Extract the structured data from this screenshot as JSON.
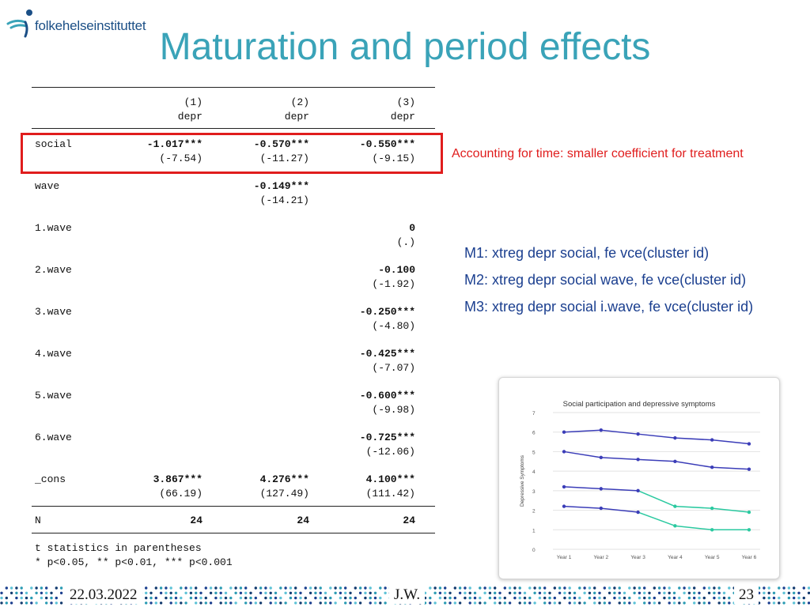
{
  "header": {
    "logo_text": "folkehelseinstituttet",
    "title": "Maturation and period effects"
  },
  "table": {
    "col_numbers": [
      "(1)",
      "(2)",
      "(3)"
    ],
    "col_depvars": [
      "depr",
      "depr",
      "depr"
    ],
    "rows": [
      {
        "label": "social",
        "coef": [
          "-1.017***",
          "-0.570***",
          "-0.550***"
        ],
        "tstat": [
          "(-7.54)",
          "(-11.27)",
          "(-9.15)"
        ]
      },
      {
        "label": "wave",
        "coef": [
          "",
          "-0.149***",
          ""
        ],
        "tstat": [
          "",
          "(-14.21)",
          ""
        ]
      },
      {
        "label": "1.wave",
        "coef": [
          "",
          "",
          "0"
        ],
        "tstat": [
          "",
          "",
          "(.)"
        ]
      },
      {
        "label": "2.wave",
        "coef": [
          "",
          "",
          "-0.100"
        ],
        "tstat": [
          "",
          "",
          "(-1.92)"
        ]
      },
      {
        "label": "3.wave",
        "coef": [
          "",
          "",
          "-0.250***"
        ],
        "tstat": [
          "",
          "",
          "(-4.80)"
        ]
      },
      {
        "label": "4.wave",
        "coef": [
          "",
          "",
          "-0.425***"
        ],
        "tstat": [
          "",
          "",
          "(-7.07)"
        ]
      },
      {
        "label": "5.wave",
        "coef": [
          "",
          "",
          "-0.600***"
        ],
        "tstat": [
          "",
          "",
          "(-9.98)"
        ]
      },
      {
        "label": "6.wave",
        "coef": [
          "",
          "",
          "-0.725***"
        ],
        "tstat": [
          "",
          "",
          "(-12.06)"
        ]
      },
      {
        "label": "_cons",
        "coef": [
          "3.867***",
          "4.276***",
          "4.100***"
        ],
        "tstat": [
          "(66.19)",
          "(127.49)",
          "(111.42)"
        ]
      }
    ],
    "n_label": "N",
    "n_values": [
      "24",
      "24",
      "24"
    ],
    "note1": "t statistics in parentheses",
    "note2": "* p<0.05, ** p<0.01, *** p<0.001"
  },
  "annotation": "Accounting for time: smaller coefficient for treatment",
  "models": [
    "M1: xtreg depr social, fe vce(cluster id)",
    "M2: xtreg depr social wave, fe vce(cluster id)",
    "M3: xtreg depr social i.wave, fe vce(cluster id)"
  ],
  "chart_data": {
    "type": "line",
    "title": "Social participation and depressive symptoms",
    "xlabel": "",
    "ylabel": "Depressive Symptoms",
    "categories": [
      "Year 1",
      "Year 2",
      "Year 3",
      "Year 4",
      "Year 5",
      "Year 6"
    ],
    "ylim": [
      0,
      7
    ],
    "yticks": [
      0,
      1,
      2,
      3,
      4,
      5,
      6,
      7
    ],
    "grid": true,
    "colors": {
      "untreated": "#3b3db8",
      "treated": "#2bc9a0"
    },
    "series": [
      {
        "values": [
          6.0,
          6.1,
          5.9,
          5.7,
          5.6,
          5.4
        ],
        "treated_from_index": null
      },
      {
        "values": [
          5.0,
          4.7,
          4.6,
          4.5,
          4.2,
          4.1
        ],
        "treated_from_index": null
      },
      {
        "values": [
          3.2,
          3.1,
          3.0,
          2.2,
          2.1,
          1.9
        ],
        "treated_from_index": 3
      },
      {
        "values": [
          2.2,
          2.1,
          1.9,
          1.2,
          1.0,
          1.0
        ],
        "treated_from_index": 3
      }
    ]
  },
  "footer": {
    "date": "22.03.2022",
    "author": "J.W.",
    "page": "23"
  }
}
